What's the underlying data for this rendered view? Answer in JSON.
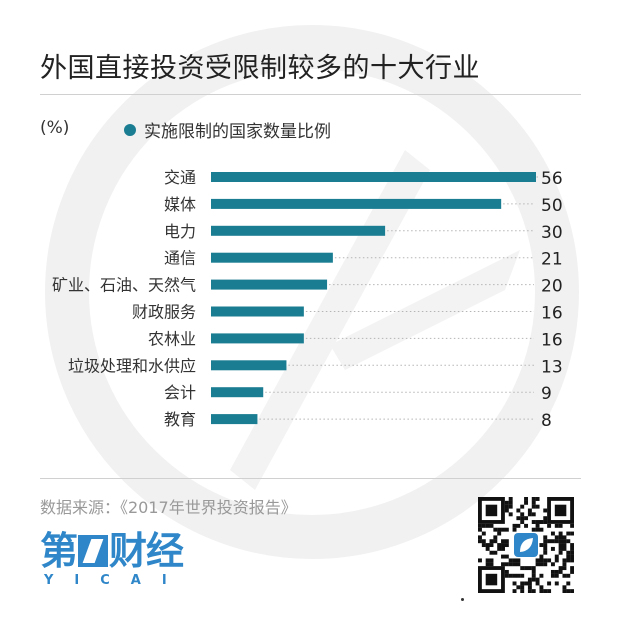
{
  "title": "外国直接投资受限制较多的十大行业",
  "unit": "(%)",
  "legend": {
    "label": "实施限制的国家数量比例",
    "color": "#1b7d92"
  },
  "source": "数据来源：《2017年世界投资报告》",
  "logo": {
    "text_left": "第",
    "text_right": "财经",
    "subtitle": "YICAI",
    "color": "#2f86c8"
  },
  "qr": {
    "icon": "qr-code",
    "center_icon": "yicai-leaf-icon"
  },
  "chart_data": {
    "type": "bar",
    "orientation": "horizontal",
    "categories": [
      "交通",
      "媒体",
      "电力",
      "通信",
      "矿业、石油、天然气",
      "财政服务",
      "农林业",
      "垃圾处理和水供应",
      "会计",
      "教育"
    ],
    "values": [
      56,
      50,
      30,
      21,
      20,
      16,
      16,
      13,
      9,
      8
    ],
    "series_name": "实施限制的国家数量比例",
    "bar_color": "#1b7d92",
    "xlim": [
      0,
      56
    ],
    "grid": false,
    "legend_position": "top-left"
  }
}
